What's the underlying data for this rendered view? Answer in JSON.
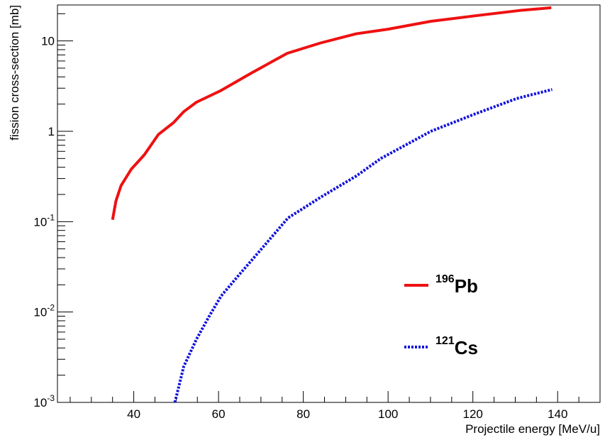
{
  "chart_data": {
    "type": "line",
    "xlabel": "Projectile energy [MeV/u]",
    "ylabel": "fission cross-section [mb]",
    "xlim": [
      22,
      150
    ],
    "ylim": [
      0.001,
      25
    ],
    "y_scale": "log",
    "grid": false,
    "legend_placement": "center-right",
    "x_ticks": [
      40,
      60,
      80,
      100,
      120,
      140
    ],
    "y_ticks": [
      {
        "value": 10,
        "base": "10",
        "exp": ""
      },
      {
        "value": 1,
        "base": "1",
        "exp": ""
      },
      {
        "value": 0.1,
        "base": "10",
        "exp": "-1"
      },
      {
        "value": 0.01,
        "base": "10",
        "exp": "-2"
      },
      {
        "value": 0.001,
        "base": "10",
        "exp": "-3"
      }
    ],
    "series": [
      {
        "name": "Pb",
        "mass_number": "196",
        "color": "#ee1111",
        "style": "solid",
        "x": [
          35,
          35.8,
          37,
          39.4,
          42.5,
          45.8,
          49.4,
          51.8,
          54.8,
          60.4,
          67.7,
          76.2,
          84.1,
          92.5,
          100,
          110.1,
          120.6,
          131,
          138.5
        ],
        "y": [
          0.105,
          0.17,
          0.25,
          0.38,
          0.55,
          0.92,
          1.25,
          1.65,
          2.1,
          2.8,
          4.4,
          7.3,
          9.5,
          12,
          13.5,
          16.5,
          19,
          21.7,
          23.3
        ]
      },
      {
        "name": "Cs",
        "mass_number": "121",
        "color": "#1111dd",
        "style": "dotted",
        "x": [
          49.7,
          51.8,
          54.8,
          57.8,
          60.6,
          64.6,
          69.3,
          76.4,
          84.4,
          92.5,
          98.3,
          110.1,
          120.4,
          130.3,
          138.7
        ],
        "y": [
          0.001,
          0.0025,
          0.005,
          0.009,
          0.015,
          0.025,
          0.045,
          0.11,
          0.19,
          0.32,
          0.5,
          1.0,
          1.55,
          2.3,
          2.9
        ]
      }
    ]
  }
}
